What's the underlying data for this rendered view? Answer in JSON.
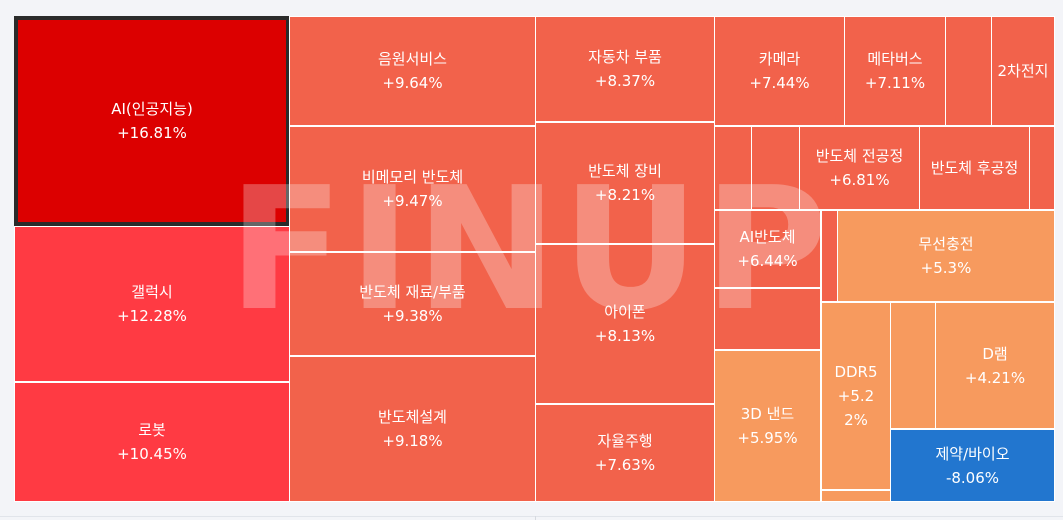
{
  "watermark": "FINUP",
  "colors": {
    "up_strong": "#dc0000",
    "up_high": "#ff3a43",
    "up_mid": "#f2624b",
    "up_low": "#f79a5e",
    "down": "#2276cf"
  },
  "chart_data": {
    "type": "treemap",
    "tiles": [
      {
        "name": "AI(인공지능)",
        "change": "+16.81%",
        "value": 16.81,
        "selected": true
      },
      {
        "name": "갤럭시",
        "change": "+12.28%",
        "value": 12.28
      },
      {
        "name": "로봇",
        "change": "+10.45%",
        "value": 10.45
      },
      {
        "name": "음원서비스",
        "change": "+9.64%",
        "value": 9.64
      },
      {
        "name": "비메모리 반도체",
        "change": "+9.47%",
        "value": 9.47
      },
      {
        "name": "반도체 재료/부품",
        "change": "+9.38%",
        "value": 9.38
      },
      {
        "name": "반도체설계",
        "change": "+9.18%",
        "value": 9.18
      },
      {
        "name": "자동차 부품",
        "change": "+8.37%",
        "value": 8.37
      },
      {
        "name": "반도체 장비",
        "change": "+8.21%",
        "value": 8.21
      },
      {
        "name": "아이폰",
        "change": "+8.13%",
        "value": 8.13
      },
      {
        "name": "자율주행",
        "change": "+7.63%",
        "value": 7.63
      },
      {
        "name": "카메라",
        "change": "+7.44%",
        "value": 7.44
      },
      {
        "name": "메타버스",
        "change": "+7.11%",
        "value": 7.11
      },
      {
        "name": "2차전지",
        "change": "",
        "value": null
      },
      {
        "name": "반도체 전공정",
        "change": "+6.81%",
        "value": 6.81
      },
      {
        "name": "반도체 후공정",
        "change": "",
        "value": null
      },
      {
        "name": "AI반도체",
        "change": "+6.44%",
        "value": 6.44
      },
      {
        "name": "3D 낸드",
        "change": "+5.95%",
        "value": 5.95
      },
      {
        "name": "무선충전",
        "change": "+5.3%",
        "value": 5.3
      },
      {
        "name": "DDR5",
        "change": "+5.22%",
        "value": 5.22
      },
      {
        "name": "D램",
        "change": "+4.21%",
        "value": 4.21
      },
      {
        "name": "제약/바이오",
        "change": "-8.06%",
        "value": -8.06
      },
      {
        "name": "",
        "change": "",
        "value": null
      },
      {
        "name": "",
        "change": "",
        "value": null
      },
      {
        "name": "",
        "change": "",
        "value": null
      },
      {
        "name": "",
        "change": "",
        "value": null
      },
      {
        "name": "",
        "change": "",
        "value": null
      },
      {
        "name": "",
        "change": "",
        "value": null
      },
      {
        "name": "",
        "change": "",
        "value": null
      },
      {
        "name": "",
        "change": "",
        "value": null
      }
    ]
  }
}
